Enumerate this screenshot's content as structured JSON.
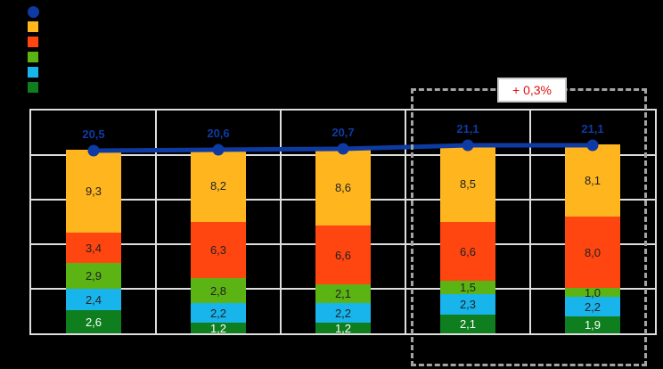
{
  "annotation": {
    "delta_label": "+ 0,3%",
    "delta_color": "#e01111"
  },
  "legend": {
    "items": [
      {
        "marker": "line-dot-icon",
        "shape": "circle",
        "color": "#0e3ba3",
        "label": ""
      },
      {
        "marker": "amber-swatch-icon",
        "shape": "square",
        "color": "#ffb61e",
        "label": ""
      },
      {
        "marker": "red-swatch-icon",
        "shape": "square",
        "color": "#ff4510",
        "label": ""
      },
      {
        "marker": "green-swatch-icon",
        "shape": "square",
        "color": "#5cb414",
        "label": ""
      },
      {
        "marker": "cyan-swatch-icon",
        "shape": "square",
        "color": "#18b4ec",
        "label": ""
      },
      {
        "marker": "darkgreen-swatch-icon",
        "shape": "square",
        "color": "#0e7e1e",
        "label": ""
      }
    ]
  },
  "chart_data": {
    "type": "bar",
    "subtype": "stacked-bars-with-total-line",
    "n_bars": 5,
    "ylim": [
      0,
      25
    ],
    "gridline_step": 5,
    "grid": "on",
    "legend_position": "top-left",
    "series": [
      {
        "name": "segment-amber",
        "color": "#ffb61e",
        "label_color": "#222222",
        "values": [
          9.3,
          8.2,
          8.6,
          8.5,
          8.1
        ],
        "labels": [
          "9,3",
          "8,2",
          "8,6",
          "8,5",
          "8,1"
        ]
      },
      {
        "name": "segment-red-orange",
        "color": "#ff4510",
        "label_color": "#222222",
        "values": [
          3.4,
          6.3,
          6.6,
          6.6,
          8.0
        ],
        "labels": [
          "3,4",
          "6,3",
          "6,6",
          "6,6",
          "8,0"
        ]
      },
      {
        "name": "segment-green",
        "color": "#5cb414",
        "label_color": "#222222",
        "values": [
          2.9,
          2.8,
          2.1,
          1.5,
          1.0
        ],
        "labels": [
          "2,9",
          "2,8",
          "2,1",
          "1,5",
          "1,0"
        ]
      },
      {
        "name": "segment-cyan",
        "color": "#18b4ec",
        "label_color": "#222222",
        "values": [
          2.4,
          2.2,
          2.2,
          2.3,
          2.2
        ],
        "labels": [
          "2,4",
          "2,2",
          "2,2",
          "2,3",
          "2,2"
        ]
      },
      {
        "name": "segment-dark-green",
        "color": "#0e7e1e",
        "label_color": "#ffffff",
        "values": [
          2.6,
          1.2,
          1.2,
          2.1,
          1.9
        ],
        "labels": [
          "2,6",
          "1,2",
          "1,2",
          "2,1",
          "1,9"
        ]
      }
    ],
    "line": {
      "name": "total-line",
      "color": "#0e3ba3",
      "label_color": "#0e3ba3",
      "values": [
        20.5,
        20.6,
        20.7,
        21.1,
        21.1
      ],
      "labels": [
        "20,5",
        "20,6",
        "20,7",
        "21,1",
        "21,1"
      ]
    }
  }
}
